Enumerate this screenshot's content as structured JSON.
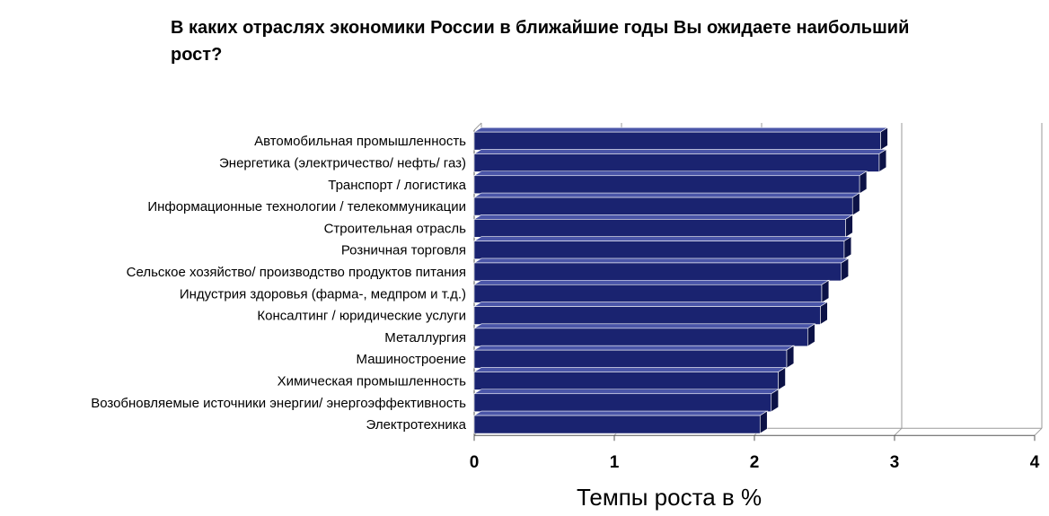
{
  "chart_data": {
    "type": "bar",
    "orientation": "horizontal",
    "title": "В каких отраслях экономики России в ближайшие годы Вы ожидаете наибольший рост?",
    "xlabel": "Темпы роста в %",
    "ylabel": "",
    "xlim": [
      0,
      4
    ],
    "xticks": [
      "0",
      "1",
      "2",
      "3",
      "4"
    ],
    "grid": true,
    "legend": "none",
    "bar_color": "#1a2370",
    "categories": [
      "Автомобильная промышленность",
      "Энергетика (электричество/ нефть/ газ)",
      "Транспорт / логистика",
      "Информационные технологии / телекоммуникации",
      "Строительная отрасль",
      "Розничная торговля",
      "Сельское хозяйство/ производство продуктов питания",
      "Индустрия здоровья (фарма-, медпром и т.д.)",
      "Консалтинг / юридические услуги",
      "Металлургия",
      "Машиностроение",
      "Химическая промышленность",
      "Возобновляемые источники энергии/ энергоэффективность",
      "Электротехника"
    ],
    "values": [
      2.9,
      2.89,
      2.75,
      2.7,
      2.65,
      2.64,
      2.62,
      2.48,
      2.47,
      2.38,
      2.23,
      2.17,
      2.12,
      2.04
    ]
  }
}
